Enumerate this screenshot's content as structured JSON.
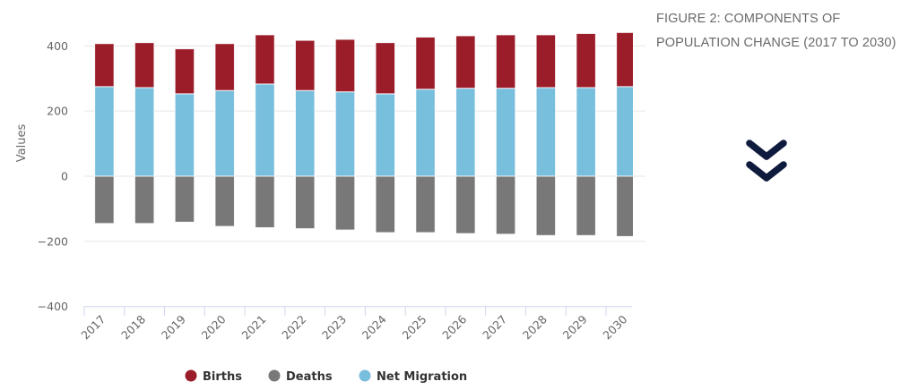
{
  "figure": {
    "title_line1": "FIGURE 2: COMPONENTS OF",
    "title_line2": "POPULATION CHANGE (2017 TO 2030)"
  },
  "scroll_icon": "double-chevron-down-icon",
  "colors": {
    "births": "#9b1d2a",
    "deaths": "#787878",
    "net_migration": "#78bedd",
    "icon": "#0f1b3d"
  },
  "chart_data": {
    "type": "bar",
    "stacked": true,
    "title": "FIGURE 2: COMPONENTS OF POPULATION CHANGE (2017 TO 2030)",
    "xlabel": "",
    "ylabel": "Values",
    "ylim": [
      -400,
      400
    ],
    "yticks": [
      400,
      200,
      0,
      -200,
      -400
    ],
    "ytick_labels": [
      "400",
      "200",
      "0",
      "−200",
      "−400"
    ],
    "grid": true,
    "legend_position": "bottom-center",
    "categories": [
      "2017",
      "2018",
      "2019",
      "2020",
      "2021",
      "2022",
      "2023",
      "2024",
      "2025",
      "2026",
      "2027",
      "2028",
      "2029",
      "2030"
    ],
    "series": [
      {
        "name": "Net Migration",
        "key": "net_migration",
        "values": [
          275,
          272,
          253,
          263,
          283,
          263,
          259,
          253,
          267,
          270,
          270,
          272,
          272,
          275
        ]
      },
      {
        "name": "Births",
        "key": "births",
        "values": [
          132,
          138,
          138,
          144,
          151,
          154,
          161,
          157,
          160,
          161,
          164,
          162,
          166,
          166
        ]
      },
      {
        "name": "Deaths",
        "key": "deaths",
        "values": [
          -145,
          -145,
          -141,
          -154,
          -158,
          -161,
          -165,
          -173,
          -173,
          -176,
          -178,
          -182,
          -182,
          -185
        ]
      }
    ],
    "legend": [
      {
        "name": "Births",
        "key": "births"
      },
      {
        "name": "Deaths",
        "key": "deaths"
      },
      {
        "name": "Net Migration",
        "key": "net_migration"
      }
    ]
  }
}
